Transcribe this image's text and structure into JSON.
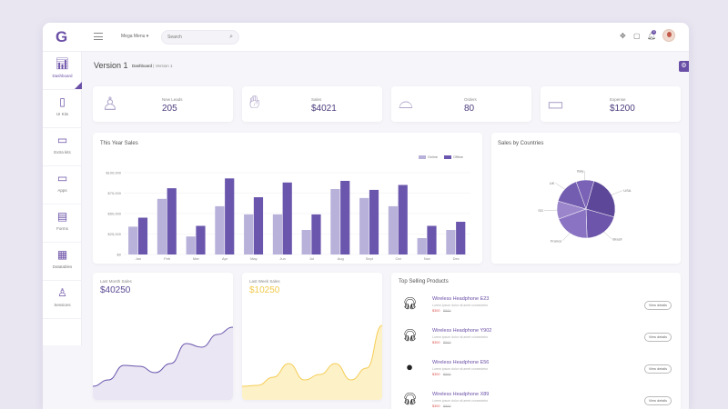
{
  "topbar": {
    "logo": "G",
    "mega_menu": "Mega Menu ▾",
    "search_placeholder": "Search",
    "notification_count": "3"
  },
  "sidebar": {
    "items": [
      {
        "label": "Dashboard",
        "icon": "bar-chart-icon"
      },
      {
        "label": "UI Kits",
        "icon": "mobile-icon"
      },
      {
        "label": "Extra kits",
        "icon": "layers-icon"
      },
      {
        "label": "Apps",
        "icon": "monitor-icon"
      },
      {
        "label": "Forms",
        "icon": "clipboard-icon"
      },
      {
        "label": "Datatables",
        "icon": "table-icon"
      },
      {
        "label": "Sessions",
        "icon": "user-icon"
      }
    ]
  },
  "header": {
    "title": "Version 1",
    "crumb_root": "Dashboard",
    "crumb_sep": "|",
    "crumb_current": "Version 1"
  },
  "stats": [
    {
      "label": "New Leads",
      "value": "205",
      "icon": "user-plus-icon"
    },
    {
      "label": "Sales",
      "value": "$4021",
      "icon": "hand-coin-icon"
    },
    {
      "label": "Orders",
      "value": "80",
      "icon": "basket-icon"
    },
    {
      "label": "Expense",
      "value": "$1200",
      "icon": "money-icon"
    }
  ],
  "sales_chart": {
    "title": "This Year Sales",
    "legend": [
      "Online",
      "Offline"
    ]
  },
  "countries_chart": {
    "title": "Sales by Countries"
  },
  "last_month": {
    "label": "Last Month Sales",
    "value": "$40250"
  },
  "last_week": {
    "label": "Last Week Sales",
    "value": "$10250"
  },
  "products": {
    "title": "Top Selling Products",
    "view_label": "View details",
    "items": [
      {
        "name": "Wireless Headphone E23",
        "desc": "Lorem ipsum dolor sit amet consectetur",
        "price": "$300",
        "old": "$500"
      },
      {
        "name": "Wireless Headphone Y902",
        "desc": "Lorem ipsum dolor sit amet consectetur",
        "price": "$300",
        "old": "$500"
      },
      {
        "name": "Wireless Headphone E56",
        "desc": "Lorem ipsum dolor sit amet consectetur",
        "price": "$300",
        "old": "$500"
      },
      {
        "name": "Wireless Headphone X89",
        "desc": "Lorem ipsum dolor sit amet consectetur",
        "price": "$300",
        "old": "$500"
      }
    ]
  },
  "colors": {
    "accent": "#6a4fa6",
    "online": "#b8b1d9",
    "offline": "#6a56ad",
    "week_fill": "#fdf1c8",
    "week_line": "#f5cd55"
  },
  "chart_data": [
    {
      "type": "bar",
      "categories": [
        "Jan",
        "Feb",
        "Mar",
        "Apr",
        "May",
        "Jun",
        "Jul",
        "Aug",
        "Sept",
        "Oct",
        "Nov",
        "Dec"
      ],
      "series": [
        {
          "name": "Online",
          "values": [
            34000,
            68000,
            22000,
            59000,
            49000,
            49000,
            30000,
            80000,
            69000,
            59000,
            20000,
            30000
          ]
        },
        {
          "name": "Offline",
          "values": [
            45000,
            81000,
            35000,
            93000,
            70000,
            88000,
            49000,
            90000,
            79000,
            85000,
            35000,
            40000
          ]
        }
      ],
      "yticks": [
        "$0",
        "$25,000",
        "$50,000",
        "$75,000",
        "$100,000"
      ],
      "ylim": [
        0,
        100000
      ],
      "title": "This Year Sales"
    },
    {
      "type": "pie",
      "title": "Sales by Countries",
      "categories": [
        "Italy",
        "USA",
        "Brazil",
        "France",
        "SG",
        "UK"
      ],
      "values": [
        10,
        25,
        20,
        20,
        10,
        15
      ]
    },
    {
      "type": "area",
      "title": "Last Month Sales",
      "values": [
        15,
        22,
        38,
        37,
        30,
        40,
        62,
        58,
        72,
        80
      ]
    },
    {
      "type": "area",
      "title": "Last Week Sales",
      "values": [
        15,
        16,
        25,
        40,
        22,
        28,
        40,
        22,
        35,
        82
      ]
    }
  ]
}
